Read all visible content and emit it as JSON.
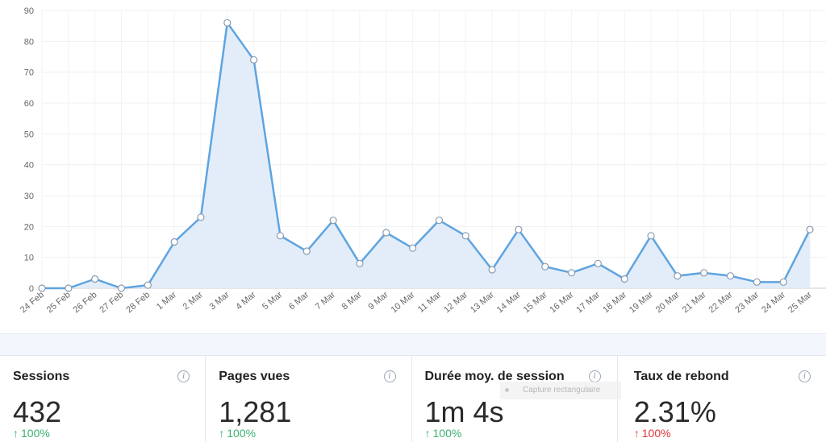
{
  "chart_data": {
    "type": "area",
    "categories": [
      "24 Feb",
      "25 Feb",
      "26 Feb",
      "27 Feb",
      "28 Feb",
      "1 Mar",
      "2 Mar",
      "3 Mar",
      "4 Mar",
      "5 Mar",
      "6 Mar",
      "7 Mar",
      "8 Mar",
      "9 Mar",
      "10 Mar",
      "11 Mar",
      "12 Mar",
      "13 Mar",
      "14 Mar",
      "15 Mar",
      "16 Mar",
      "17 Mar",
      "18 Mar",
      "19 Mar",
      "20 Mar",
      "21 Mar",
      "22 Mar",
      "23 Mar",
      "24 Mar",
      "25 Mar"
    ],
    "values": [
      0,
      0,
      3,
      0,
      1,
      15,
      23,
      86,
      74,
      17,
      12,
      22,
      8,
      18,
      13,
      22,
      17,
      6,
      19,
      7,
      5,
      8,
      3,
      17,
      4,
      5,
      4,
      2,
      2,
      19
    ],
    "yticks": [
      0,
      10,
      20,
      30,
      40,
      50,
      60,
      70,
      80,
      90
    ],
    "ylim": [
      0,
      90
    ],
    "grid": true,
    "line_color": "#5ea4e0",
    "fill_color": "#deeaf8"
  },
  "stats": [
    {
      "title": "Sessions",
      "value": "432",
      "change": "100%",
      "trend": "up"
    },
    {
      "title": "Pages vues",
      "value": "1,281",
      "change": "100%",
      "trend": "up"
    },
    {
      "title": "Durée moy. de session",
      "value": "1m 4s",
      "change": "100%",
      "trend": "up"
    },
    {
      "title": "Taux de rebond",
      "value": "2.31%",
      "change": "100%",
      "trend": "down"
    }
  ],
  "info_icon_glyph": "i",
  "up_arrow": "↑",
  "down_arrow": "↑",
  "overlay_text": "Capture rectangulaire"
}
